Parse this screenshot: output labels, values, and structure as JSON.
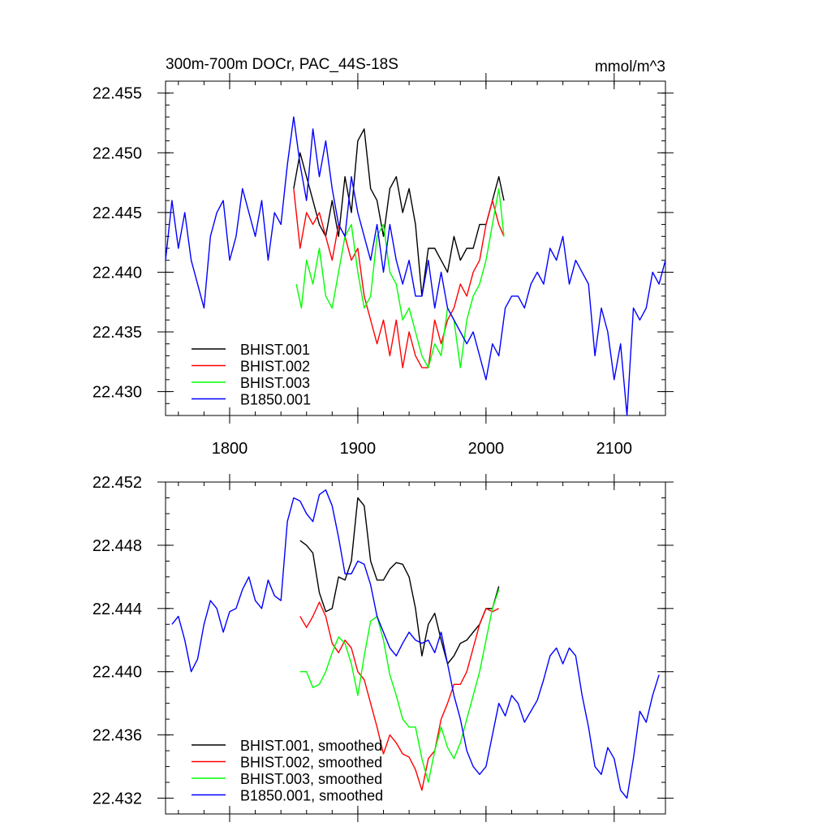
{
  "chart_data": [
    {
      "type": "line",
      "title": "300m-700m DOCr, PAC_44S-18S",
      "units": "mmol/m^3",
      "xlim": [
        1750,
        2140
      ],
      "ylim": [
        22.428,
        22.456
      ],
      "xticks": [
        1800,
        1900,
        2000,
        2100
      ],
      "yticks": [
        22.43,
        22.435,
        22.44,
        22.445,
        22.45,
        22.455
      ],
      "ytick_labels": [
        "22.430",
        "22.435",
        "22.440",
        "22.445",
        "22.450",
        "22.455"
      ],
      "legend_position": "bottom-left",
      "series": [
        {
          "name": "BHIST.001",
          "color": "#000000",
          "x": [
            1850,
            1855,
            1860,
            1865,
            1870,
            1875,
            1880,
            1885,
            1890,
            1895,
            1900,
            1905,
            1910,
            1915,
            1920,
            1925,
            1930,
            1935,
            1940,
            1945,
            1950,
            1955,
            1960,
            1965,
            1970,
            1975,
            1980,
            1985,
            1990,
            1995,
            2000,
            2005,
            2010,
            2014
          ],
          "y": [
            22.447,
            22.45,
            22.448,
            22.446,
            22.444,
            22.443,
            22.446,
            22.443,
            22.448,
            22.445,
            22.451,
            22.452,
            22.447,
            22.446,
            22.443,
            22.447,
            22.448,
            22.445,
            22.447,
            22.444,
            22.438,
            22.442,
            22.442,
            22.441,
            22.44,
            22.443,
            22.441,
            22.442,
            22.442,
            22.444,
            22.444,
            22.446,
            22.448,
            22.446
          ]
        },
        {
          "name": "BHIST.002",
          "color": "#ff0000",
          "x": [
            1850,
            1855,
            1860,
            1865,
            1870,
            1875,
            1880,
            1885,
            1890,
            1895,
            1900,
            1905,
            1910,
            1915,
            1920,
            1925,
            1930,
            1935,
            1940,
            1945,
            1950,
            1955,
            1960,
            1965,
            1970,
            1975,
            1980,
            1985,
            1990,
            1995,
            2000,
            2005,
            2010,
            2014
          ],
          "y": [
            22.447,
            22.442,
            22.445,
            22.444,
            22.445,
            22.443,
            22.441,
            22.444,
            22.443,
            22.441,
            22.442,
            22.438,
            22.436,
            22.434,
            22.436,
            22.433,
            22.436,
            22.432,
            22.435,
            22.433,
            22.432,
            22.432,
            22.436,
            22.434,
            22.436,
            22.437,
            22.439,
            22.438,
            22.44,
            22.441,
            22.444,
            22.446,
            22.444,
            22.443
          ]
        },
        {
          "name": "BHIST.003",
          "color": "#00ff00",
          "x": [
            1852,
            1856,
            1860,
            1865,
            1870,
            1875,
            1880,
            1885,
            1890,
            1895,
            1900,
            1905,
            1910,
            1915,
            1920,
            1925,
            1930,
            1935,
            1940,
            1945,
            1950,
            1955,
            1960,
            1965,
            1970,
            1975,
            1980,
            1985,
            1990,
            1995,
            2000,
            2005,
            2010,
            2014
          ],
          "y": [
            22.439,
            22.437,
            22.441,
            22.439,
            22.442,
            22.438,
            22.437,
            22.44,
            22.443,
            22.444,
            22.44,
            22.437,
            22.438,
            22.443,
            22.444,
            22.44,
            22.439,
            22.436,
            22.437,
            22.435,
            22.433,
            22.432,
            22.434,
            22.433,
            22.437,
            22.436,
            22.432,
            22.436,
            22.438,
            22.439,
            22.441,
            22.444,
            22.447,
            22.443
          ]
        },
        {
          "name": "B1850.001",
          "color": "#0000ff",
          "x": [
            1750,
            1755,
            1760,
            1765,
            1770,
            1775,
            1780,
            1785,
            1790,
            1795,
            1800,
            1805,
            1810,
            1815,
            1820,
            1825,
            1830,
            1835,
            1840,
            1845,
            1850,
            1855,
            1860,
            1865,
            1870,
            1875,
            1880,
            1885,
            1890,
            1895,
            1900,
            1905,
            1910,
            1915,
            1920,
            1925,
            1930,
            1935,
            1940,
            1945,
            1950,
            1955,
            1960,
            1965,
            1970,
            1975,
            1980,
            1985,
            1990,
            1995,
            2000,
            2005,
            2010,
            2015,
            2020,
            2025,
            2030,
            2035,
            2040,
            2045,
            2050,
            2055,
            2060,
            2065,
            2070,
            2075,
            2080,
            2085,
            2090,
            2095,
            2100,
            2105,
            2110,
            2115,
            2120,
            2125,
            2130,
            2135,
            2140
          ],
          "y": [
            22.441,
            22.446,
            22.442,
            22.445,
            22.441,
            22.439,
            22.437,
            22.443,
            22.445,
            22.446,
            22.441,
            22.443,
            22.447,
            22.445,
            22.443,
            22.446,
            22.441,
            22.445,
            22.444,
            22.449,
            22.453,
            22.449,
            22.446,
            22.452,
            22.448,
            22.451,
            22.447,
            22.444,
            22.443,
            22.448,
            22.445,
            22.443,
            22.441,
            22.444,
            22.44,
            22.444,
            22.441,
            22.439,
            22.441,
            22.438,
            22.438,
            22.441,
            22.437,
            22.44,
            22.437,
            22.436,
            22.435,
            22.434,
            22.435,
            22.433,
            22.431,
            22.434,
            22.433,
            22.437,
            22.438,
            22.438,
            22.437,
            22.439,
            22.44,
            22.439,
            22.442,
            22.441,
            22.443,
            22.439,
            22.441,
            22.44,
            22.439,
            22.433,
            22.437,
            22.435,
            22.431,
            22.434,
            22.428,
            22.437,
            22.436,
            22.437,
            22.44,
            22.439,
            22.441
          ]
        }
      ]
    },
    {
      "type": "line",
      "xlim": [
        1750,
        2140
      ],
      "ylim": [
        22.431,
        22.452
      ],
      "xticks": [
        1800,
        1900,
        2000,
        2100
      ],
      "yticks": [
        22.432,
        22.436,
        22.44,
        22.444,
        22.448,
        22.452
      ],
      "ytick_labels": [
        "22.432",
        "22.436",
        "22.440",
        "22.444",
        "22.448",
        "22.452"
      ],
      "legend_position": "bottom-left",
      "series": [
        {
          "name": "BHIST.001, smoothed",
          "color": "#000000",
          "x": [
            1855,
            1860,
            1865,
            1870,
            1875,
            1880,
            1885,
            1890,
            1895,
            1900,
            1905,
            1910,
            1915,
            1920,
            1925,
            1930,
            1935,
            1940,
            1945,
            1950,
            1955,
            1960,
            1965,
            1970,
            1975,
            1980,
            1985,
            1990,
            1995,
            2000,
            2005,
            2010
          ],
          "y": [
            22.4483,
            22.448,
            22.4475,
            22.445,
            22.4438,
            22.444,
            22.446,
            22.4458,
            22.447,
            22.451,
            22.4505,
            22.447,
            22.4458,
            22.4458,
            22.4465,
            22.4469,
            22.4468,
            22.446,
            22.444,
            22.441,
            22.443,
            22.4437,
            22.442,
            22.4405,
            22.441,
            22.4418,
            22.442,
            22.4425,
            22.443,
            22.444,
            22.444,
            22.4454
          ]
        },
        {
          "name": "BHIST.002, smoothed",
          "color": "#ff0000",
          "x": [
            1855,
            1860,
            1865,
            1870,
            1875,
            1880,
            1885,
            1890,
            1895,
            1900,
            1905,
            1910,
            1915,
            1920,
            1925,
            1930,
            1935,
            1940,
            1945,
            1950,
            1955,
            1960,
            1965,
            1970,
            1975,
            1980,
            1985,
            1990,
            1995,
            2000,
            2005,
            2010
          ],
          "y": [
            22.4435,
            22.4428,
            22.4435,
            22.4444,
            22.4435,
            22.4418,
            22.4412,
            22.442,
            22.4415,
            22.44,
            22.4395,
            22.438,
            22.4365,
            22.4348,
            22.436,
            22.4355,
            22.4348,
            22.4346,
            22.4338,
            22.4325,
            22.4345,
            22.435,
            22.437,
            22.438,
            22.4392,
            22.4392,
            22.44,
            22.4415,
            22.443,
            22.444,
            22.4438,
            22.444
          ]
        },
        {
          "name": "BHIST.003, smoothed",
          "color": "#00ff00",
          "x": [
            1855,
            1860,
            1865,
            1870,
            1875,
            1880,
            1885,
            1890,
            1895,
            1900,
            1905,
            1910,
            1915,
            1920,
            1925,
            1930,
            1935,
            1940,
            1945,
            1950,
            1955,
            1960,
            1965,
            1970,
            1975,
            1980,
            1985,
            1990,
            1995,
            2000,
            2005,
            2010
          ],
          "y": [
            22.44,
            22.44,
            22.439,
            22.4392,
            22.44,
            22.4412,
            22.4422,
            22.4418,
            22.4405,
            22.4385,
            22.441,
            22.4432,
            22.4435,
            22.442,
            22.4398,
            22.4385,
            22.437,
            22.4365,
            22.4365,
            22.4345,
            22.433,
            22.435,
            22.4365,
            22.4352,
            22.4345,
            22.4355,
            22.437,
            22.4385,
            22.44,
            22.442,
            22.444,
            22.4452
          ]
        },
        {
          "name": "B1850.001, smoothed",
          "color": "#0000ff",
          "x": [
            1755,
            1760,
            1765,
            1770,
            1775,
            1780,
            1785,
            1790,
            1795,
            1800,
            1805,
            1810,
            1815,
            1820,
            1825,
            1830,
            1835,
            1840,
            1845,
            1850,
            1855,
            1860,
            1865,
            1870,
            1875,
            1880,
            1885,
            1890,
            1895,
            1900,
            1905,
            1910,
            1915,
            1920,
            1925,
            1930,
            1935,
            1940,
            1945,
            1950,
            1955,
            1960,
            1965,
            1970,
            1975,
            1980,
            1985,
            1990,
            1995,
            2000,
            2005,
            2010,
            2015,
            2020,
            2025,
            2030,
            2035,
            2040,
            2045,
            2050,
            2055,
            2060,
            2065,
            2070,
            2075,
            2080,
            2085,
            2090,
            2095,
            2100,
            2105,
            2110,
            2115,
            2120,
            2125,
            2130,
            2135
          ],
          "y": [
            22.443,
            22.4435,
            22.442,
            22.44,
            22.4408,
            22.443,
            22.4445,
            22.444,
            22.4425,
            22.4438,
            22.444,
            22.4452,
            22.446,
            22.4445,
            22.444,
            22.4458,
            22.4448,
            22.4445,
            22.4495,
            22.451,
            22.4508,
            22.45,
            22.4495,
            22.4512,
            22.4515,
            22.4505,
            22.4485,
            22.4462,
            22.4462,
            22.447,
            22.4468,
            22.4455,
            22.4435,
            22.4425,
            22.4415,
            22.441,
            22.4418,
            22.4425,
            22.442,
            22.4418,
            22.442,
            22.4412,
            22.4425,
            22.4405,
            22.4385,
            22.437,
            22.435,
            22.434,
            22.4335,
            22.434,
            22.436,
            22.438,
            22.4372,
            22.4385,
            22.438,
            22.4368,
            22.4375,
            22.4382,
            22.4395,
            22.441,
            22.4415,
            22.4405,
            22.4415,
            22.441,
            22.4385,
            22.4365,
            22.434,
            22.4335,
            22.4352,
            22.4345,
            22.4325,
            22.432,
            22.4345,
            22.4375,
            22.4368,
            22.4385,
            22.4398
          ]
        }
      ]
    }
  ]
}
